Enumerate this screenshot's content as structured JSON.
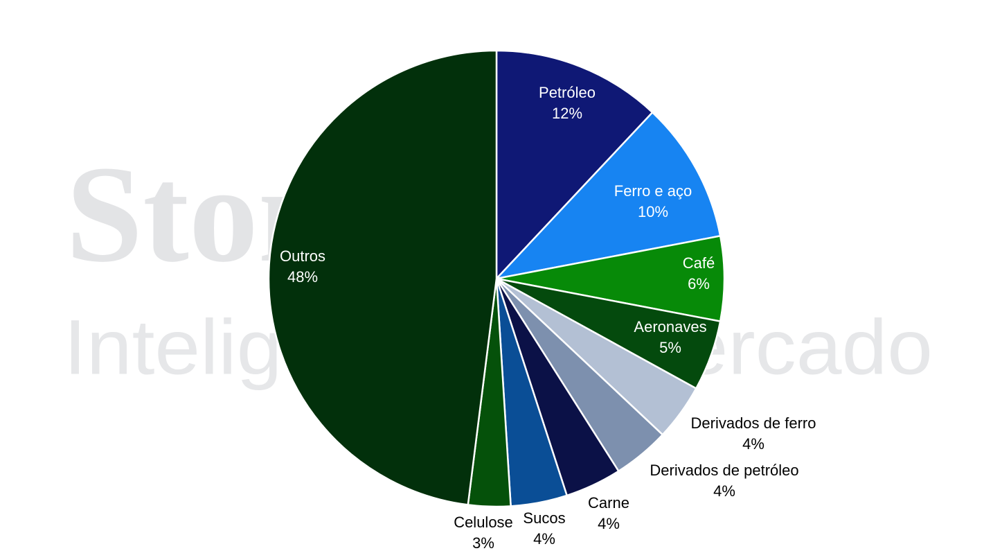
{
  "chart_data": {
    "type": "pie",
    "watermark": [
      "StoneX",
      "Inteligência de Mercado"
    ],
    "categories": [
      "Petróleo",
      "Ferro e aço",
      "Café",
      "Aeronaves",
      "Derivados de ferro",
      "Derivados de petróleo",
      "Carne",
      "Sucos",
      "Celulose",
      "Outros"
    ],
    "values": [
      12,
      10,
      6,
      5,
      4,
      4,
      4,
      4,
      3,
      48
    ],
    "value_labels": [
      "12%",
      "10%",
      "6%",
      "5%",
      "4%",
      "4%",
      "4%",
      "4%",
      "3%",
      "48%"
    ],
    "colors": [
      "#0f1875",
      "#1784f2",
      "#078a08",
      "#044a0d",
      "#b3c0d4",
      "#7d90ae",
      "#0b1147",
      "#0a4e96",
      "#05510a",
      "#02300b"
    ]
  }
}
